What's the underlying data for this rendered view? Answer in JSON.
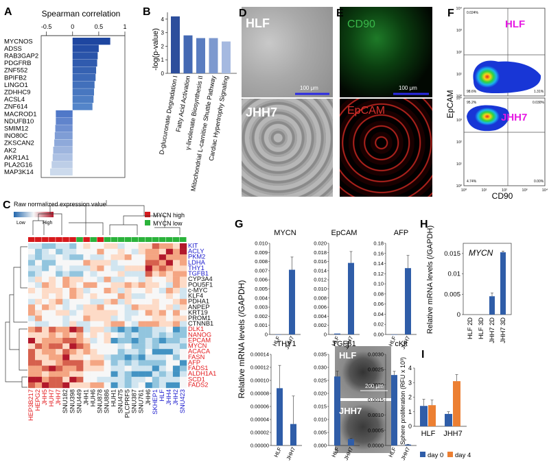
{
  "panel_letters": [
    "A",
    "B",
    "C",
    "D",
    "E",
    "F",
    "G",
    "H",
    "I"
  ],
  "panel_a": {
    "title": "Spearman correlation",
    "ticks": [
      "-0.5",
      "0",
      "0.5",
      "1"
    ],
    "genes": [
      "MYCNOS",
      "ADSS",
      "RAB3GAP2",
      "PDGFRB",
      "ZNF552",
      "BPIFB2",
      "LINGO1",
      "ZDHHC9",
      "ACSL4",
      "ZNF614",
      "MACROD1",
      "NDUFB10",
      "SMIM12",
      "INO80C",
      "ZKSCAN2",
      "AK2",
      "AKR1A1",
      "PLA2G16",
      "MAP3K14"
    ]
  },
  "panel_b": {
    "ylabel": "-log(p-value)",
    "yticks": [
      "0",
      "1",
      "2",
      "3",
      "4"
    ],
    "categories": [
      "D-glucuronate Degradation I",
      "Fatty Acid Activation",
      "γ-linolenate Biosynthesis II",
      "Mitochondrial L-carnitine Shuttle Pathway",
      "Cardiac Hypertrophy Signaling"
    ]
  },
  "panel_c": {
    "legend_title": "Raw normalized expression value",
    "low": "Low",
    "high": "High",
    "mycn_high": "MYCN high",
    "mycn_low": "MYCN low",
    "genes": [
      "KIT",
      "ACLY",
      "PKM2",
      "LDHA",
      "THY1",
      "TGFB1",
      "CYP3A4",
      "POU5F1",
      "c-MYC",
      "KLF4",
      "PDHA1",
      "ANPEP",
      "KRT19",
      "PROM1",
      "CTNNB1",
      "DLK1",
      "NANOG",
      "EPCAM",
      "MYCN",
      "ACACA",
      "FASN",
      "AFP",
      "FADS1",
      "ALDH1A1",
      "SCD1",
      "FADS2"
    ],
    "samples": [
      "HEP3B217",
      "HEPG2",
      "JHH5",
      "HUH7",
      "JHH7",
      "SNU182",
      "SNU398",
      "SNU449",
      "JHH1",
      "HUH6",
      "SNU878",
      "SNU886",
      "HUH1",
      "SNU475",
      "PLCPRF5",
      "SNU387",
      "SNU761",
      "JHH6",
      "SKHEP1",
      "HLF",
      "JHH4",
      "JHH2",
      "SNU423"
    ]
  },
  "panel_d": {
    "top_label": "HLF",
    "bottom_label": "JHH7",
    "scale": "100 μm"
  },
  "panel_e": {
    "top_label": "CD90",
    "bottom_label": "EpCAM",
    "scale": "100 μm"
  },
  "panel_f": {
    "top_label": "HLF",
    "bottom_label": "JHH7",
    "ylabel": "EpCAM",
    "xlabel": "CD90",
    "top_q": [
      "0.024%",
      "",
      "98.6%",
      "1.31%"
    ],
    "bottom_q": [
      "95.2%",
      "0.030%",
      "4.74%",
      "0.00%"
    ],
    "yticks": [
      "10⁰",
      "10¹",
      "10²",
      "10³",
      "10⁴"
    ],
    "xticks": [
      "10⁰",
      "10¹",
      "10²",
      "10³",
      "10⁴"
    ]
  },
  "panel_g": {
    "ylabel": "Relative mRNA levels (/GAPDH)",
    "xcats": [
      "HLF",
      "JHH7"
    ]
  },
  "panel_h": {
    "ylabel": "Relative mRNA levels (/GAPDH)",
    "gene": "MYCN",
    "yticks": [
      "0",
      "0.005",
      "0.01",
      "0.015"
    ],
    "cats": [
      "HLF 2D",
      "HLF 3D",
      "JHH7 2D",
      "JHH7 3D"
    ]
  },
  "panel_i": {
    "top_label": "HLF",
    "bottom_label": "JHH7",
    "scale": "200 μm",
    "ylabel": "Sphere proliferation (RFU x 10³)",
    "yticks": [
      "0",
      "1",
      "2",
      "3",
      "4"
    ],
    "cats": [
      "HLF",
      "JHH7"
    ],
    "legend": [
      "day 0",
      "day 4"
    ]
  },
  "chart_data": [
    {
      "type": "bar",
      "title": "Spearman correlation",
      "categories": [
        "MYCNOS",
        "ADSS",
        "RAB3GAP2",
        "PDGFRB",
        "ZNF552",
        "BPIFB2",
        "LINGO1",
        "ZDHHC9",
        "ACSL4",
        "ZNF614",
        "MACROD1",
        "NDUFB10",
        "SMIM12",
        "INO80C",
        "ZKSCAN2",
        "AK2",
        "AKR1A1",
        "PLA2G16",
        "MAP3K14"
      ],
      "values": [
        0.72,
        0.5,
        0.48,
        0.47,
        0.45,
        0.44,
        0.42,
        0.41,
        0.4,
        0.38,
        -0.32,
        -0.32,
        -0.33,
        -0.34,
        -0.35,
        -0.37,
        -0.38,
        -0.4,
        -0.43
      ],
      "xlim": [
        -0.6,
        1
      ]
    },
    {
      "type": "bar",
      "categories": [
        "D-glucuronate Degradation I",
        "Fatty Acid Activation",
        "γ-linolenate Biosynthesis II",
        "Mitochondrial L-carnitine Shuttle Pathway",
        "Cardiac Hypertrophy Signaling"
      ],
      "values": [
        4.2,
        2.8,
        2.6,
        2.6,
        2.35
      ],
      "ylabel": "-log(p-value)",
      "ylim": [
        0,
        4.5
      ]
    },
    {
      "type": "heatmap",
      "rows": [
        "KIT",
        "ACLY",
        "PKM2",
        "LDHA",
        "THY1",
        "TGFB1",
        "CYP3A4",
        "POU5F1",
        "c-MYC",
        "KLF4",
        "PDHA1",
        "ANPEP",
        "KRT19",
        "PROM1",
        "CTNNB1",
        "DLK1",
        "NANOG",
        "EPCAM",
        "MYCN",
        "ACACA",
        "FASN",
        "AFP",
        "FADS1",
        "ALDH1A1",
        "SCD1",
        "FADS2"
      ],
      "columns": [
        "HEP3B217",
        "HEPG2",
        "JHH5",
        "HUH7",
        "JHH7",
        "SNU182",
        "SNU398",
        "SNU449",
        "JHH1",
        "HUH6",
        "SNU878",
        "SNU886",
        "HUH1",
        "SNU475",
        "PLCPRF5",
        "SNU387",
        "SNU761",
        "JHH6",
        "SKHEP1",
        "HLF",
        "JHH4",
        "JHH2",
        "SNU423"
      ],
      "column_groups": [
        "high",
        "high",
        "high",
        "high",
        "high",
        "high",
        "high",
        "low",
        "high",
        "low",
        "high",
        "low",
        "low",
        "low",
        "low",
        "low",
        "low",
        "low",
        "low",
        "low",
        "low",
        "low",
        "low"
      ]
    },
    {
      "type": "bar",
      "title": "MYCN",
      "categories": [
        "HLF",
        "JHH7"
      ],
      "values": [
        0,
        0.0071
      ],
      "error": [
        0,
        0.0014
      ],
      "ylim": [
        0,
        0.01
      ],
      "yticks": [
        "0",
        "0.001",
        "0.002",
        "0.003",
        "0.004",
        "0.005",
        "0.006",
        "0.007",
        "0.008",
        "0.009",
        "0.010"
      ]
    },
    {
      "type": "bar",
      "title": "EpCAM",
      "categories": [
        "HLF",
        "JHH7"
      ],
      "values": [
        0.0002,
        0.0157
      ],
      "error": [
        0,
        0.0025
      ],
      "ylim": [
        0,
        0.02
      ],
      "yticks": [
        "0",
        "0.002",
        "0.004",
        "0.006",
        "0.008",
        "0.010",
        "0.012",
        "0.014",
        "0.016",
        "0.018",
        "0.020"
      ]
    },
    {
      "type": "bar",
      "title": "AFP",
      "categories": [
        "HLF",
        "JHH7"
      ],
      "values": [
        0,
        0.131
      ],
      "error": [
        0,
        0.025
      ],
      "ylim": [
        0,
        0.18
      ],
      "yticks": [
        "0.00",
        "0.02",
        "0.04",
        "0.06",
        "0.08",
        "0.10",
        "0.12",
        "0.14",
        "0.16",
        "0.18"
      ]
    },
    {
      "type": "bar",
      "title": "THY1",
      "categories": [
        "HLF",
        "JHH7"
      ],
      "values": [
        8.8e-05,
        3.3e-05
      ],
      "error": [
        3.5e-05,
        4.3e-05
      ],
      "ylim": [
        0,
        0.00014
      ],
      "yticks": [
        "0.00000",
        "0.00002",
        "0.00004",
        "0.00006",
        "0.00008",
        "0.00010",
        "0.00012",
        "0.00014"
      ]
    },
    {
      "type": "bar",
      "title": "TGFβ1",
      "categories": [
        "HLF",
        "JHH7"
      ],
      "values": [
        0.0265,
        0.0025
      ],
      "error": [
        0.002,
        0.0003
      ],
      "ylim": [
        0,
        0.035
      ],
      "yticks": [
        "0.000",
        "0.005",
        "0.010",
        "0.015",
        "0.020",
        "0.025",
        "0.030",
        "0.035"
      ]
    },
    {
      "type": "bar",
      "title": "cKit",
      "categories": [
        "HLF",
        "JHH7"
      ],
      "values": [
        0.00232,
        3e-05
      ],
      "error": [
        0.00012,
        1e-05
      ],
      "ylim": [
        0,
        0.003
      ],
      "yticks": [
        "0.0000",
        "0.0005",
        "0.0010",
        "0.0015",
        "0.0020",
        "0.0025",
        "0.0030"
      ]
    },
    {
      "type": "bar",
      "title": "MYCN",
      "categories": [
        "HLF 2D",
        "HLF 3D",
        "JHH7 2D",
        "JHH7 3D"
      ],
      "values": [
        0,
        0,
        0.0045,
        0.0153
      ],
      "error": [
        0,
        0,
        0.0008,
        0.0003
      ],
      "ylim": [
        0,
        0.0175
      ]
    },
    {
      "type": "bar",
      "categories": [
        "HLF",
        "JHH7"
      ],
      "series": [
        {
          "name": "day 0",
          "values": [
            1.4,
            0.85
          ],
          "error": [
            0.45,
            0.15
          ]
        },
        {
          "name": "day 4",
          "values": [
            1.45,
            3.1
          ],
          "error": [
            0.35,
            0.45
          ]
        }
      ],
      "ylabel": "Sphere proliferation (RFU x 10³)",
      "ylim": [
        0,
        4
      ]
    }
  ],
  "colors": {
    "blue": "#2f5da8",
    "blue_dark": "#1f4a8a",
    "orange": "#ec7f32",
    "gene_blue": "#1a1acd",
    "gene_red": "#e3191c",
    "group_high": "#d7191c",
    "group_low": "#2bb33b",
    "fluor_green": "#3ab84a",
    "fluor_red": "#d8312c",
    "magenta": "#e619e3"
  }
}
